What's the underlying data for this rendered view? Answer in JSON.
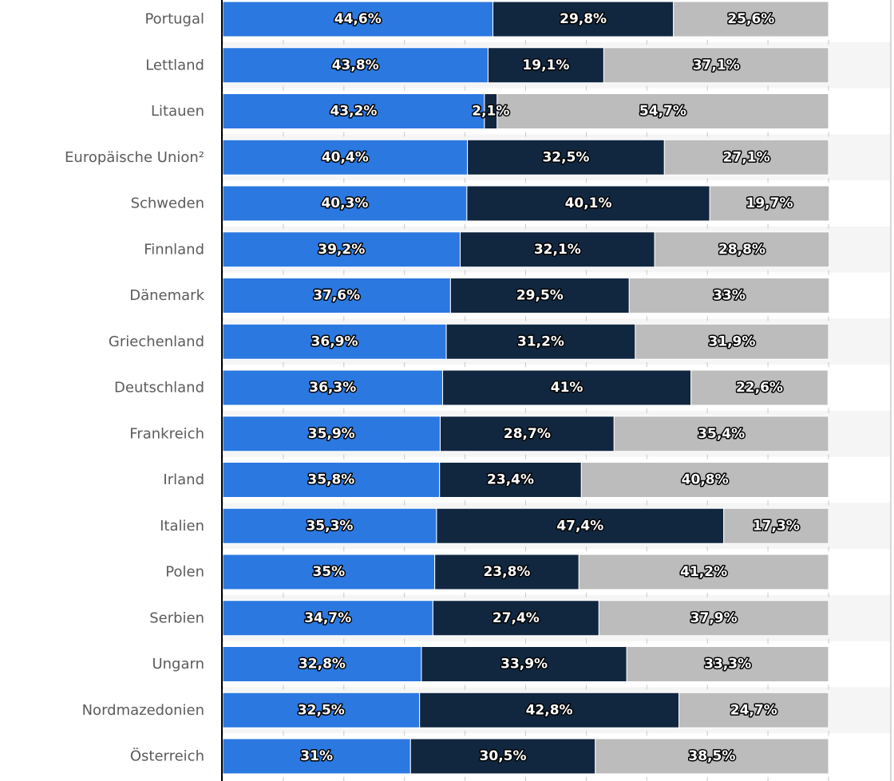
{
  "chart_data": {
    "type": "bar",
    "orientation": "horizontal",
    "stacked": true,
    "percent_stacked": true,
    "categories": [
      "Portugal",
      "Lettland",
      "Litauen",
      "Europäische Union²",
      "Schweden",
      "Finnland",
      "Dänemark",
      "Griechenland",
      "Deutschland",
      "Frankreich",
      "Irland",
      "Italien",
      "Polen",
      "Serbien",
      "Ungarn",
      "Nordmazedonien",
      "Österreich"
    ],
    "series": [
      {
        "name": "series-1",
        "color": "#2b78e0",
        "values": [
          44.6,
          43.8,
          43.2,
          40.4,
          40.3,
          39.2,
          37.6,
          36.9,
          36.3,
          35.9,
          35.8,
          35.3,
          35.0,
          34.7,
          32.8,
          32.5,
          31.0
        ],
        "labels": [
          "44,6%",
          "43,8%",
          "43,2%",
          "40,4%",
          "40,3%",
          "39,2%",
          "37,6%",
          "36,9%",
          "36,3%",
          "35,9%",
          "35,8%",
          "35,3%",
          "35%",
          "34,7%",
          "32,8%",
          "32,5%",
          "31%"
        ]
      },
      {
        "name": "series-2",
        "color": "#112740",
        "values": [
          29.8,
          19.1,
          2.1,
          32.5,
          40.1,
          32.1,
          29.5,
          31.2,
          41.0,
          28.7,
          23.4,
          47.4,
          23.8,
          27.4,
          33.9,
          42.8,
          30.5
        ],
        "labels": [
          "29,8%",
          "19,1%",
          "2,1%",
          "32,5%",
          "40,1%",
          "32,1%",
          "29,5%",
          "31,2%",
          "41%",
          "28,7%",
          "23,4%",
          "47,4%",
          "23,8%",
          "27,4%",
          "33,9%",
          "42,8%",
          "30,5%"
        ]
      },
      {
        "name": "series-3",
        "color": "#bcbcbc",
        "values": [
          25.6,
          37.1,
          54.7,
          27.1,
          19.7,
          28.8,
          33.0,
          31.9,
          22.6,
          35.4,
          40.8,
          17.3,
          41.2,
          37.9,
          33.3,
          24.7,
          38.5
        ],
        "labels": [
          "25,6%",
          "37,1%",
          "54,7%",
          "27,1%",
          "19,7%",
          "28,8%",
          "33%",
          "31,9%",
          "22,6%",
          "35,4%",
          "40,8%",
          "17,3%",
          "41,2%",
          "37,9%",
          "33,3%",
          "24,7%",
          "38,5%"
        ]
      }
    ],
    "xlim": [
      0,
      100
    ],
    "title": "",
    "xlabel": "",
    "ylabel": "",
    "grid": true,
    "legend": "none",
    "colors": {
      "row_band": "#f5f5f5",
      "axis": "#000000",
      "grid_tick": "#c8c8c8"
    }
  }
}
